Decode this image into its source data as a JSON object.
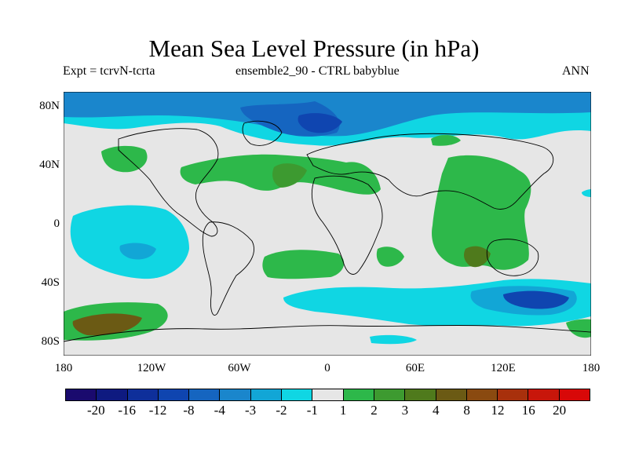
{
  "title": "Mean Sea Level Pressure (in hPa)",
  "subtitle_left": "Expt = tcrvN-tcrta",
  "subtitle_center": "ensemble2_90 - CTRL babyblue",
  "subtitle_right": "ANN",
  "lat_labels": [
    "80N",
    "40N",
    "0",
    "40S",
    "80S"
  ],
  "lon_labels": [
    "180",
    "120W",
    "60W",
    "0",
    "60E",
    "120E",
    "180"
  ],
  "colorbar": {
    "colors": [
      "#1a0a6e",
      "#0e1a80",
      "#0e2f9a",
      "#0f45b0",
      "#1565c0",
      "#1a86cc",
      "#12a6d6",
      "#10d6e3",
      "#e6e6e6",
      "#2db84a",
      "#3d9a30",
      "#4f7a1c",
      "#6b5a14",
      "#8a4a10",
      "#a8300c",
      "#c8160a",
      "#d80808"
    ],
    "labels": [
      "-20",
      "-16",
      "-12",
      "-8",
      "-4",
      "-3",
      "-2",
      "-1",
      "1",
      "2",
      "3",
      "4",
      "8",
      "12",
      "16",
      "20"
    ]
  }
}
